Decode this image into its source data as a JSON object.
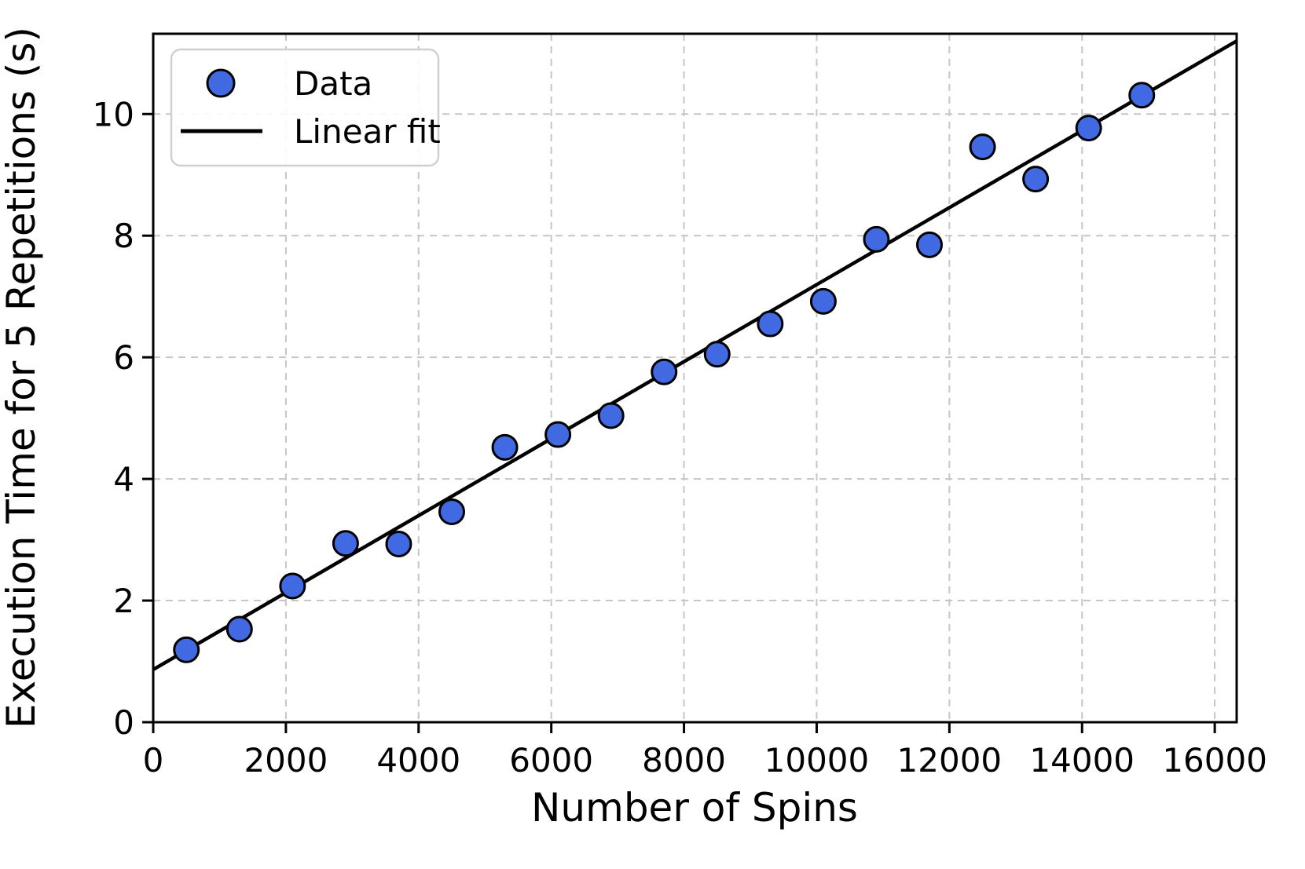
{
  "chart_data": {
    "type": "scatter",
    "title": "",
    "xlabel": "Number of Spins",
    "ylabel": "Execution Time for 5 Repetitions (s)",
    "xlim": [
      0,
      16330
    ],
    "ylim": [
      0,
      11.32
    ],
    "xticks": [
      0,
      2000,
      4000,
      6000,
      8000,
      10000,
      12000,
      14000,
      16000
    ],
    "yticks": [
      0,
      2,
      4,
      6,
      8,
      10
    ],
    "grid": true,
    "grid_style": "dashed",
    "legend_position": "upper-left",
    "series": [
      {
        "name": "Data",
        "type": "scatter",
        "marker": "circle",
        "marker_color": "#4169E1",
        "marker_edge_color": "#000000",
        "x": [
          500,
          1300,
          2100,
          2900,
          3700,
          4500,
          5300,
          6100,
          6900,
          7700,
          8500,
          9300,
          10100,
          10900,
          11700,
          12500,
          13300,
          14100,
          14900
        ],
        "y": [
          1.19,
          1.53,
          2.24,
          2.94,
          2.93,
          3.46,
          4.52,
          4.73,
          5.04,
          5.76,
          6.05,
          6.55,
          6.92,
          7.94,
          7.85,
          9.46,
          8.93,
          9.77,
          10.31
        ]
      },
      {
        "name": "Linear fit",
        "type": "line",
        "color": "#000000",
        "fit": {
          "slope": 0.000633,
          "intercept": 0.865
        }
      }
    ],
    "colors": {
      "marker_fill": "#4169E1",
      "marker_edge": "#000000",
      "fit_line": "#000000",
      "grid": "#c6c6c6",
      "spine": "#000000",
      "legend_border": "#d0d0d0",
      "background": "#ffffff"
    }
  }
}
